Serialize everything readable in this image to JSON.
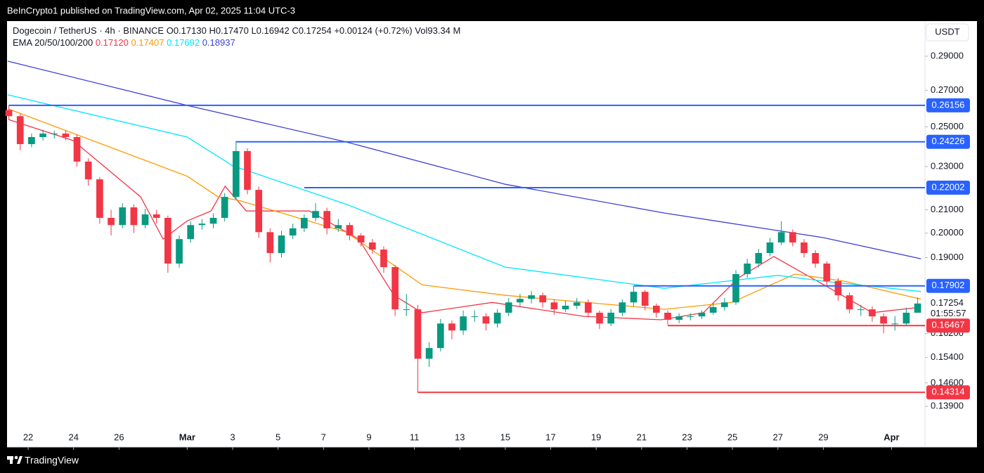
{
  "header": {
    "published": "BeInCrypto1 published on TradingView.com, Apr 02, 2025 11:04 UTC-3"
  },
  "footer": {
    "brand": "TradingView"
  },
  "chart_data": {
    "type": "candlestick",
    "symbol": "Dogecoin / TetherUS · 4h · BINANCE",
    "ohlc_legend": [
      "O0.17130",
      "H0.17470",
      "L0.16942",
      "C0.17254",
      "+0.00124 (+0.72%)",
      "Vol93.34 M"
    ],
    "indicator": "EMA 20/50/100/200",
    "currency": "USDT",
    "last_price": 0.17254,
    "countdown": "01:55:57",
    "log_scale": true,
    "grid": false,
    "up_color": "#089981",
    "down_color": "#f23645",
    "xlim": [
      -0.93,
      39.41
    ],
    "ylim": [
      0.1278,
      0.3122
    ],
    "xticks": [
      {
        "value": 0,
        "label": "22"
      },
      {
        "value": 2,
        "label": "24"
      },
      {
        "value": 4,
        "label": "26"
      },
      {
        "value": 7,
        "label": "Mar"
      },
      {
        "value": 9,
        "label": "3"
      },
      {
        "value": 11,
        "label": "5"
      },
      {
        "value": 13,
        "label": "7"
      },
      {
        "value": 15,
        "label": "9"
      },
      {
        "value": 17,
        "label": "11"
      },
      {
        "value": 19,
        "label": "13"
      },
      {
        "value": 21,
        "label": "15"
      },
      {
        "value": 23,
        "label": "17"
      },
      {
        "value": 25,
        "label": "19"
      },
      {
        "value": 27,
        "label": "21"
      },
      {
        "value": 29,
        "label": "23"
      },
      {
        "value": 31,
        "label": "25"
      },
      {
        "value": 33,
        "label": "27"
      },
      {
        "value": 35,
        "label": "29"
      },
      {
        "value": 38,
        "label": "Apr"
      }
    ],
    "yticks": [
      {
        "value": 0.29,
        "label": "0.29000"
      },
      {
        "value": 0.27,
        "label": "0.27000"
      },
      {
        "value": 0.25,
        "label": "0.25000"
      },
      {
        "value": 0.23,
        "label": "0.23000"
      },
      {
        "value": 0.21,
        "label": "0.21000"
      },
      {
        "value": 0.2,
        "label": "0.20000"
      },
      {
        "value": 0.19,
        "label": "0.19000"
      },
      {
        "value": 0.162,
        "label": "0.16200"
      },
      {
        "value": 0.154,
        "label": "0.15400"
      },
      {
        "value": 0.146,
        "label": "0.14600"
      },
      {
        "value": 0.139,
        "label": "0.13900"
      }
    ],
    "x": [
      -0.85,
      -0.35,
      0.15,
      0.65,
      1.15,
      1.65,
      2.15,
      2.65,
      3.15,
      3.65,
      4.15,
      4.65,
      5.15,
      5.65,
      6.15,
      6.65,
      7.15,
      7.65,
      8.15,
      8.65,
      9.15,
      9.65,
      10.15,
      10.65,
      11.15,
      11.65,
      12.15,
      12.65,
      13.15,
      13.65,
      14.15,
      14.65,
      15.15,
      15.65,
      16.15,
      16.65,
      17.15,
      17.65,
      18.15,
      18.65,
      19.15,
      19.65,
      20.15,
      20.65,
      21.15,
      21.65,
      22.15,
      22.65,
      23.15,
      23.65,
      24.15,
      24.65,
      25.15,
      25.65,
      26.15,
      26.65,
      27.15,
      27.65,
      28.15,
      28.65,
      29.15,
      29.65,
      30.15,
      30.65,
      31.15,
      31.65,
      32.15,
      32.65,
      33.15,
      33.65,
      34.15,
      34.65,
      35.15,
      35.65,
      36.15,
      36.65,
      37.15,
      37.65,
      38.15,
      38.65,
      39.15
    ],
    "open": [
      0.259,
      0.2557,
      0.2411,
      0.2447,
      0.2465,
      0.2465,
      0.2447,
      0.2324,
      0.2239,
      0.2065,
      0.2034,
      0.2111,
      0.2034,
      0.208,
      0.2065,
      0.1876,
      0.1975,
      0.2034,
      0.204,
      0.2065,
      0.2158,
      0.2376,
      0.219,
      0.2004,
      0.1918,
      0.199,
      0.202,
      0.2065,
      0.2095,
      0.202,
      0.2034,
      0.199,
      0.1961,
      0.1932,
      0.1862,
      0.1704,
      0.1704,
      0.1536,
      0.1571,
      0.1654,
      0.163,
      0.1679,
      0.1679,
      0.1654,
      0.1692,
      0.1729,
      0.1742,
      0.1755,
      0.1729,
      0.1704,
      0.1717,
      0.1729,
      0.1692,
      0.1654,
      0.1692,
      0.1729,
      0.1768,
      0.1717,
      0.1692,
      0.1667,
      0.1679,
      0.1679,
      0.1692,
      0.1712,
      0.1729,
      0.1835,
      0.1876,
      0.1918,
      0.1961,
      0.2004,
      0.1961,
      0.1918,
      0.1876,
      0.1808,
      0.1755,
      0.1704,
      0.1704,
      0.1679,
      0.1654,
      0.1654,
      0.1692
    ],
    "high": [
      0.2615,
      0.257,
      0.2465,
      0.2485,
      0.248,
      0.248,
      0.246,
      0.234,
      0.225,
      0.21,
      0.213,
      0.2125,
      0.2105,
      0.21,
      0.2075,
      0.199,
      0.205,
      0.206,
      0.2085,
      0.2175,
      0.2426,
      0.239,
      0.2205,
      0.202,
      0.201,
      0.204,
      0.208,
      0.213,
      0.211,
      0.206,
      0.2045,
      0.2,
      0.1975,
      0.1945,
      0.187,
      0.176,
      0.172,
      0.159,
      0.167,
      0.1665,
      0.17,
      0.17,
      0.169,
      0.1705,
      0.1745,
      0.176,
      0.177,
      0.1765,
      0.174,
      0.1735,
      0.1745,
      0.174,
      0.17,
      0.1705,
      0.174,
      0.179,
      0.1775,
      0.1725,
      0.17,
      0.169,
      0.169,
      0.17,
      0.1725,
      0.1745,
      0.185,
      0.1895,
      0.1935,
      0.198,
      0.205,
      0.2015,
      0.1975,
      0.193,
      0.1885,
      0.182,
      0.1765,
      0.172,
      0.1715,
      0.169,
      0.168,
      0.171,
      0.1747
    ],
    "low": [
      0.254,
      0.238,
      0.2395,
      0.243,
      0.244,
      0.243,
      0.23,
      0.221,
      0.204,
      0.199,
      0.202,
      0.2,
      0.202,
      0.204,
      0.184,
      0.186,
      0.196,
      0.2015,
      0.202,
      0.205,
      0.2145,
      0.217,
      0.198,
      0.188,
      0.19,
      0.1975,
      0.2005,
      0.205,
      0.1995,
      0.2005,
      0.197,
      0.1945,
      0.1915,
      0.184,
      0.168,
      0.168,
      0.1431,
      0.151,
      0.156,
      0.16,
      0.1615,
      0.166,
      0.163,
      0.164,
      0.168,
      0.1715,
      0.1725,
      0.171,
      0.1685,
      0.1695,
      0.1705,
      0.1675,
      0.1635,
      0.1645,
      0.168,
      0.1715,
      0.17,
      0.1675,
      0.165,
      0.1655,
      0.1665,
      0.167,
      0.1685,
      0.17,
      0.172,
      0.182,
      0.186,
      0.1905,
      0.195,
      0.1945,
      0.19,
      0.186,
      0.179,
      0.1735,
      0.169,
      0.168,
      0.166,
      0.162,
      0.163,
      0.1645,
      0.1694
    ],
    "close": [
      0.2557,
      0.2411,
      0.2447,
      0.2465,
      0.2465,
      0.2447,
      0.2324,
      0.2239,
      0.2065,
      0.2034,
      0.2111,
      0.2034,
      0.208,
      0.2065,
      0.1876,
      0.1975,
      0.2034,
      0.204,
      0.2065,
      0.2158,
      0.2376,
      0.219,
      0.2004,
      0.1918,
      0.199,
      0.202,
      0.2065,
      0.2095,
      0.202,
      0.2034,
      0.199,
      0.1961,
      0.1932,
      0.1862,
      0.1704,
      0.1704,
      0.1536,
      0.1571,
      0.1654,
      0.163,
      0.1679,
      0.1679,
      0.1654,
      0.1692,
      0.1729,
      0.1742,
      0.1755,
      0.1729,
      0.1704,
      0.1717,
      0.1729,
      0.1692,
      0.1654,
      0.1692,
      0.1729,
      0.1768,
      0.1717,
      0.1692,
      0.1667,
      0.1679,
      0.1679,
      0.1692,
      0.1712,
      0.1729,
      0.1835,
      0.1876,
      0.1918,
      0.1961,
      0.2004,
      0.1961,
      0.1918,
      0.1876,
      0.1808,
      0.1755,
      0.1704,
      0.1704,
      0.1679,
      0.1654,
      0.1654,
      0.1692,
      0.1725
    ],
    "series": [
      {
        "legend_value": "0.17120",
        "color": "#f23645",
        "x": [
          -0.87,
          1.98,
          4.95,
          5.94,
          7,
          8.05,
          8.67,
          9.6,
          12.38,
          14.55,
          16.1,
          17.34,
          20.43,
          24.46,
          27.86,
          29.72,
          31.27,
          32.82,
          35.29,
          37.15,
          39.29
        ],
        "values": [
          0.2539,
          0.2429,
          0.2158,
          0.1975,
          0.2052,
          0.2095,
          0.2207,
          0.2095,
          0.2095,
          0.1975,
          0.1755,
          0.1692,
          0.1729,
          0.1679,
          0.1667,
          0.1692,
          0.1821,
          0.1904,
          0.1781,
          0.1692,
          0.1712
        ]
      },
      {
        "legend_value": "0.17407",
        "color": "#ff9800",
        "x": [
          -0.87,
          7,
          8.36,
          9.29,
          14,
          17.34,
          21,
          28,
          30.96,
          33.75,
          35.91,
          39.29
        ],
        "values": [
          0.2596,
          0.2254,
          0.2158,
          0.2142,
          0.2004,
          0.1794,
          0.1755,
          0.1704,
          0.1729,
          0.1835,
          0.1808,
          0.1741
        ]
      },
      {
        "legend_value": "0.17692",
        "color": "#00e5ff",
        "x": [
          -0.9,
          7,
          9,
          14,
          21,
          28,
          33,
          35,
          39.3
        ],
        "values": [
          0.2674,
          0.2447,
          0.2304,
          0.2125,
          0.1862,
          0.1781,
          0.183,
          0.1808,
          0.1769
        ]
      },
      {
        "legend_value": "0.18937",
        "color": "#3f3fd6",
        "x": [
          -0.9,
          7,
          14,
          21,
          28,
          35,
          39.3
        ],
        "values": [
          0.287,
          0.2615,
          0.2422,
          0.2216,
          0.2086,
          0.1981,
          0.1895
        ]
      }
    ],
    "levels": [
      {
        "value": 0.26156,
        "start": -0.85,
        "color": "#2962ff"
      },
      {
        "value": 0.24226,
        "start": 9.15,
        "color": "#2962ff"
      },
      {
        "value": 0.22002,
        "start": 12.15,
        "color": "#2962ff"
      },
      {
        "value": 0.17902,
        "start": 26.65,
        "color": "#2962ff"
      },
      {
        "value": 0.16467,
        "start": 28.15,
        "color": "#f23645"
      },
      {
        "value": 0.14314,
        "start": 17.15,
        "color": "#f23645"
      }
    ]
  }
}
